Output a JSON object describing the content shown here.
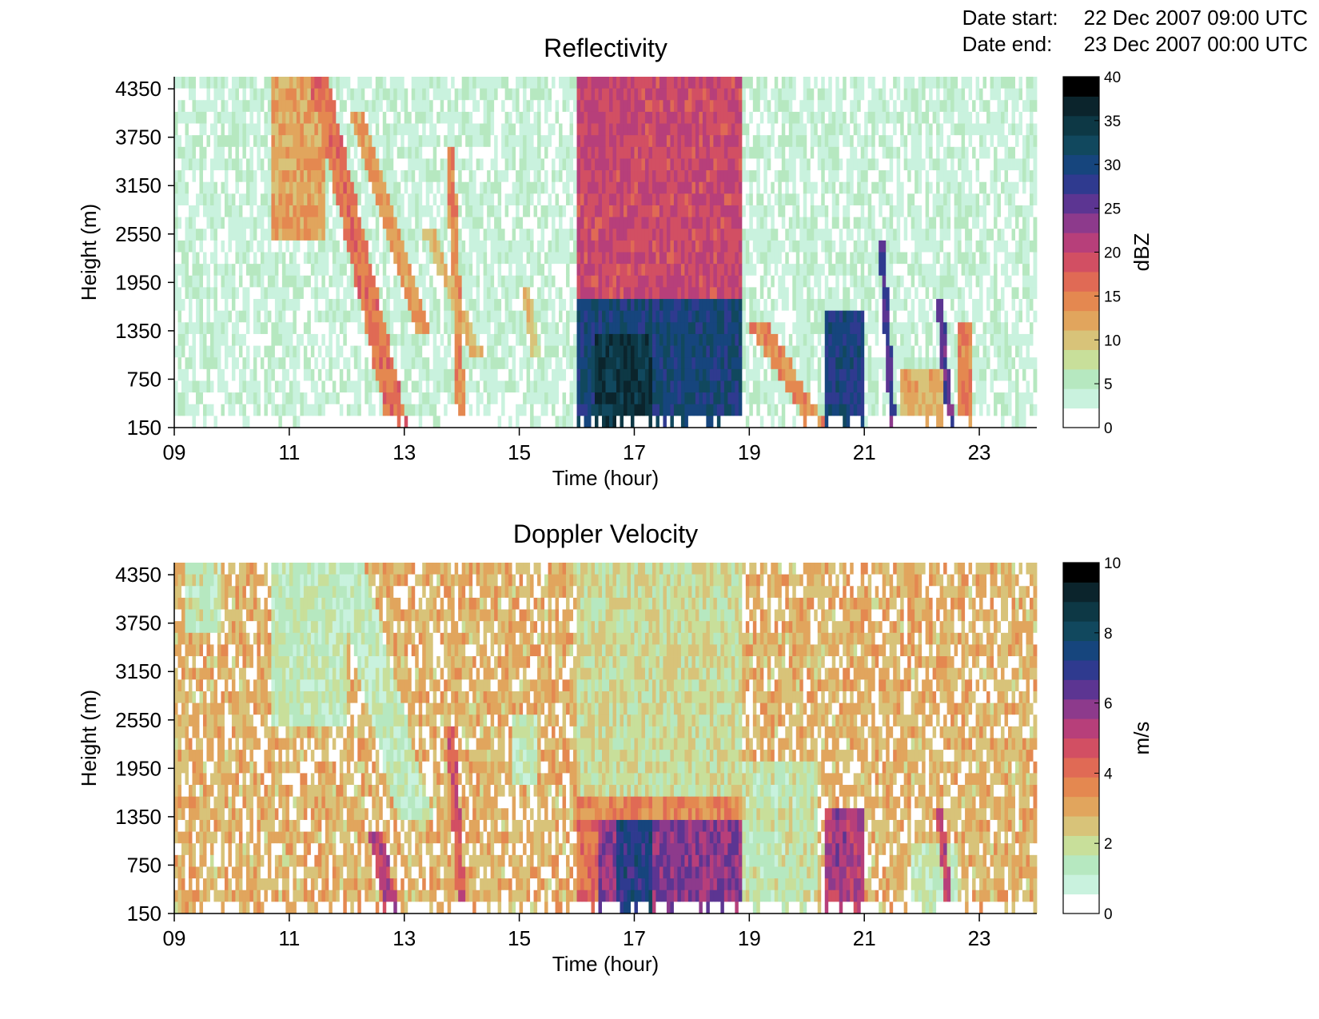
{
  "header": {
    "date_start_label": "Date start:",
    "date_start_value": "22 Dec 2007 09:00 UTC",
    "date_end_label": "Date end:",
    "date_end_value": "23 Dec 2007 00:00 UTC"
  },
  "colormap": [
    "#ffffff",
    "#c9f2de",
    "#b6e8c0",
    "#c8df9a",
    "#d8c379",
    "#e1a55d",
    "#e48850",
    "#e06a55",
    "#d24f63",
    "#b73f7a",
    "#8d3a8c",
    "#5c3592",
    "#2f3a8f",
    "#16457d",
    "#11485e",
    "#0d3845",
    "#0b242c",
    "#000000"
  ],
  "chart_data": [
    {
      "type": "heatmap",
      "title": "Reflectivity",
      "xlabel": "Time (hour)",
      "ylabel": "Height (m)",
      "x_ticks": [
        "09",
        "11",
        "13",
        "15",
        "17",
        "19",
        "21",
        "23"
      ],
      "y_ticks": [
        "150",
        "750",
        "1350",
        "1950",
        "2550",
        "3150",
        "3750",
        "4350"
      ],
      "xlim": [
        9,
        24
      ],
      "ylim": [
        150,
        4500
      ],
      "colorbar": {
        "label": "dBZ",
        "ticks": [
          "0",
          "5",
          "10",
          "15",
          "20",
          "25",
          "30",
          "35",
          "40"
        ],
        "range": [
          0,
          40
        ]
      },
      "features": [
        {
          "kind": "background",
          "value": 4
        },
        {
          "kind": "band",
          "x0": 10.7,
          "x1": 11.6,
          "y0": 2400,
          "y1": 4500,
          "value": 13
        },
        {
          "kind": "streak",
          "x_top": 11.5,
          "y_top": 4500,
          "x_bot": 12.9,
          "y_bot": 150,
          "width": 0.35,
          "value": 17
        },
        {
          "kind": "streak",
          "x_top": 12.2,
          "y_top": 4000,
          "x_bot": 13.3,
          "y_bot": 1350,
          "width": 0.25,
          "value": 14
        },
        {
          "kind": "streak",
          "x_top": 13.8,
          "y_top": 3600,
          "x_bot": 14.0,
          "y_bot": 150,
          "width": 0.15,
          "value": 15
        },
        {
          "kind": "streak",
          "x_top": 13.4,
          "y_top": 2600,
          "x_bot": 14.3,
          "y_bot": 1000,
          "width": 0.2,
          "value": 12
        },
        {
          "kind": "streak",
          "x_top": 15.1,
          "y_top": 1900,
          "x_bot": 15.3,
          "y_bot": 1000,
          "width": 0.15,
          "value": 11
        },
        {
          "kind": "band",
          "x0": 16.0,
          "x1": 18.9,
          "y0": 1750,
          "y1": 4500,
          "value": 21
        },
        {
          "kind": "band",
          "x0": 16.0,
          "x1": 18.9,
          "y0": 150,
          "y1": 1750,
          "value": 32
        },
        {
          "kind": "band",
          "x0": 16.3,
          "x1": 17.3,
          "y0": 150,
          "y1": 1350,
          "value": 37
        },
        {
          "kind": "streak",
          "x_top": 19.1,
          "y_top": 1500,
          "x_bot": 20.2,
          "y_bot": 150,
          "width": 0.35,
          "value": 15
        },
        {
          "kind": "band",
          "x0": 20.3,
          "x1": 21.0,
          "y0": 150,
          "y1": 1600,
          "value": 31
        },
        {
          "kind": "streak",
          "x_top": 21.3,
          "y_top": 2500,
          "x_bot": 21.5,
          "y_bot": 150,
          "width": 0.12,
          "value": 28
        },
        {
          "kind": "band",
          "x0": 21.6,
          "x1": 22.4,
          "y0": 150,
          "y1": 850,
          "value": 12
        },
        {
          "kind": "streak",
          "x_top": 22.3,
          "y_top": 1800,
          "x_bot": 22.5,
          "y_bot": 150,
          "width": 0.12,
          "value": 27
        },
        {
          "kind": "band",
          "x0": 22.6,
          "x1": 22.9,
          "y0": 150,
          "y1": 1400,
          "value": 16
        }
      ]
    },
    {
      "type": "heatmap",
      "title": "Doppler Velocity",
      "xlabel": "Time (hour)",
      "ylabel": "Height (m)",
      "x_ticks": [
        "09",
        "11",
        "13",
        "15",
        "17",
        "19",
        "21",
        "23"
      ],
      "y_ticks": [
        "150",
        "750",
        "1350",
        "1950",
        "2550",
        "3150",
        "3750",
        "4350"
      ],
      "xlim": [
        9,
        24
      ],
      "ylim": [
        150,
        4500
      ],
      "colorbar": {
        "label": "m/s",
        "ticks": [
          "0",
          "2",
          "4",
          "6",
          "8",
          "10"
        ],
        "range": [
          0,
          10
        ]
      },
      "features": [
        {
          "kind": "background",
          "value": 3
        },
        {
          "kind": "band",
          "x0": 9.2,
          "x1": 9.8,
          "y0": 3600,
          "y1": 4500,
          "value": 1.7
        },
        {
          "kind": "band",
          "x0": 10.7,
          "x1": 12.0,
          "y0": 2400,
          "y1": 4500,
          "value": 1.6
        },
        {
          "kind": "streak",
          "x_top": 12.0,
          "y_top": 4500,
          "x_bot": 13.2,
          "y_bot": 1300,
          "width": 0.6,
          "value": 1.5
        },
        {
          "kind": "streak",
          "x_top": 12.5,
          "y_top": 1100,
          "x_bot": 12.8,
          "y_bot": 150,
          "width": 0.25,
          "value": 5.6
        },
        {
          "kind": "streak",
          "x_top": 13.8,
          "y_top": 2500,
          "x_bot": 14.0,
          "y_bot": 150,
          "width": 0.15,
          "value": 5
        },
        {
          "kind": "band",
          "x0": 14.9,
          "x1": 15.3,
          "y0": 1800,
          "y1": 2600,
          "value": 1.6
        },
        {
          "kind": "band",
          "x0": 16.0,
          "x1": 18.9,
          "y0": 1500,
          "y1": 4500,
          "value": 2.1
        },
        {
          "kind": "band",
          "x0": 16.0,
          "x1": 18.9,
          "y0": 1350,
          "y1": 1550,
          "value": 3.8
        },
        {
          "kind": "band",
          "x0": 16.0,
          "x1": 16.4,
          "y0": 150,
          "y1": 1350,
          "value": 4.2
        },
        {
          "kind": "band",
          "x0": 16.4,
          "x1": 18.9,
          "y0": 150,
          "y1": 1350,
          "value": 6.3
        },
        {
          "kind": "band",
          "x0": 16.7,
          "x1": 17.3,
          "y0": 150,
          "y1": 1350,
          "value": 7.6
        },
        {
          "kind": "band",
          "x0": 18.9,
          "x1": 20.2,
          "y0": 150,
          "y1": 2000,
          "value": 1.8
        },
        {
          "kind": "band",
          "x0": 20.3,
          "x1": 21.0,
          "y0": 150,
          "y1": 1400,
          "value": 5.8
        },
        {
          "kind": "band",
          "x0": 21.8,
          "x1": 22.6,
          "y0": 150,
          "y1": 1000,
          "value": 1.6
        },
        {
          "kind": "streak",
          "x_top": 22.3,
          "y_top": 1400,
          "x_bot": 22.5,
          "y_bot": 150,
          "width": 0.12,
          "value": 5.5
        }
      ]
    }
  ]
}
